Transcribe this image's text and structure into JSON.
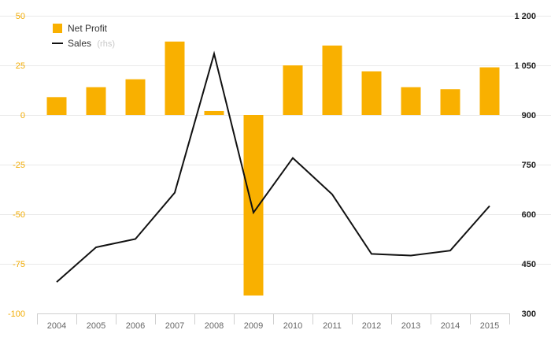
{
  "chart_data": {
    "type": "bar+line",
    "categories": [
      "2004",
      "2005",
      "2006",
      "2007",
      "2008",
      "2009",
      "2010",
      "2011",
      "2012",
      "2013",
      "2014",
      "2015"
    ],
    "series": [
      {
        "name": "Net Profit",
        "type": "bar",
        "axis": "left",
        "color": "#f9b000",
        "values": [
          9,
          14,
          18,
          37,
          2,
          -91,
          25,
          35,
          22,
          14,
          13,
          24
        ]
      },
      {
        "name": "Sales",
        "type": "line",
        "axis": "right",
        "color": "#111111",
        "values": [
          395,
          500,
          525,
          665,
          1085,
          605,
          770,
          660,
          480,
          475,
          490,
          625
        ]
      }
    ],
    "left_axis": {
      "ylim": [
        -100,
        50
      ],
      "ticks": [
        50,
        25,
        0,
        -25,
        -50,
        -75,
        -100
      ],
      "tick_labels": [
        "50",
        "25",
        "0",
        "-25",
        "-50",
        "-75",
        "-100"
      ]
    },
    "right_axis": {
      "ylim": [
        300,
        1200
      ],
      "ticks": [
        1200,
        1050,
        900,
        750,
        600,
        450,
        300
      ],
      "tick_labels": [
        "1 200",
        "1 050",
        "900",
        "750",
        "600",
        "450",
        "300"
      ]
    },
    "legend": {
      "position": "top-left",
      "items": [
        {
          "label": "Net Profit",
          "suffix": "",
          "marker": "square",
          "color": "#f9b000"
        },
        {
          "label": "Sales",
          "suffix": "(rhs)",
          "marker": "line",
          "color": "#111111"
        }
      ]
    },
    "grid": true
  }
}
